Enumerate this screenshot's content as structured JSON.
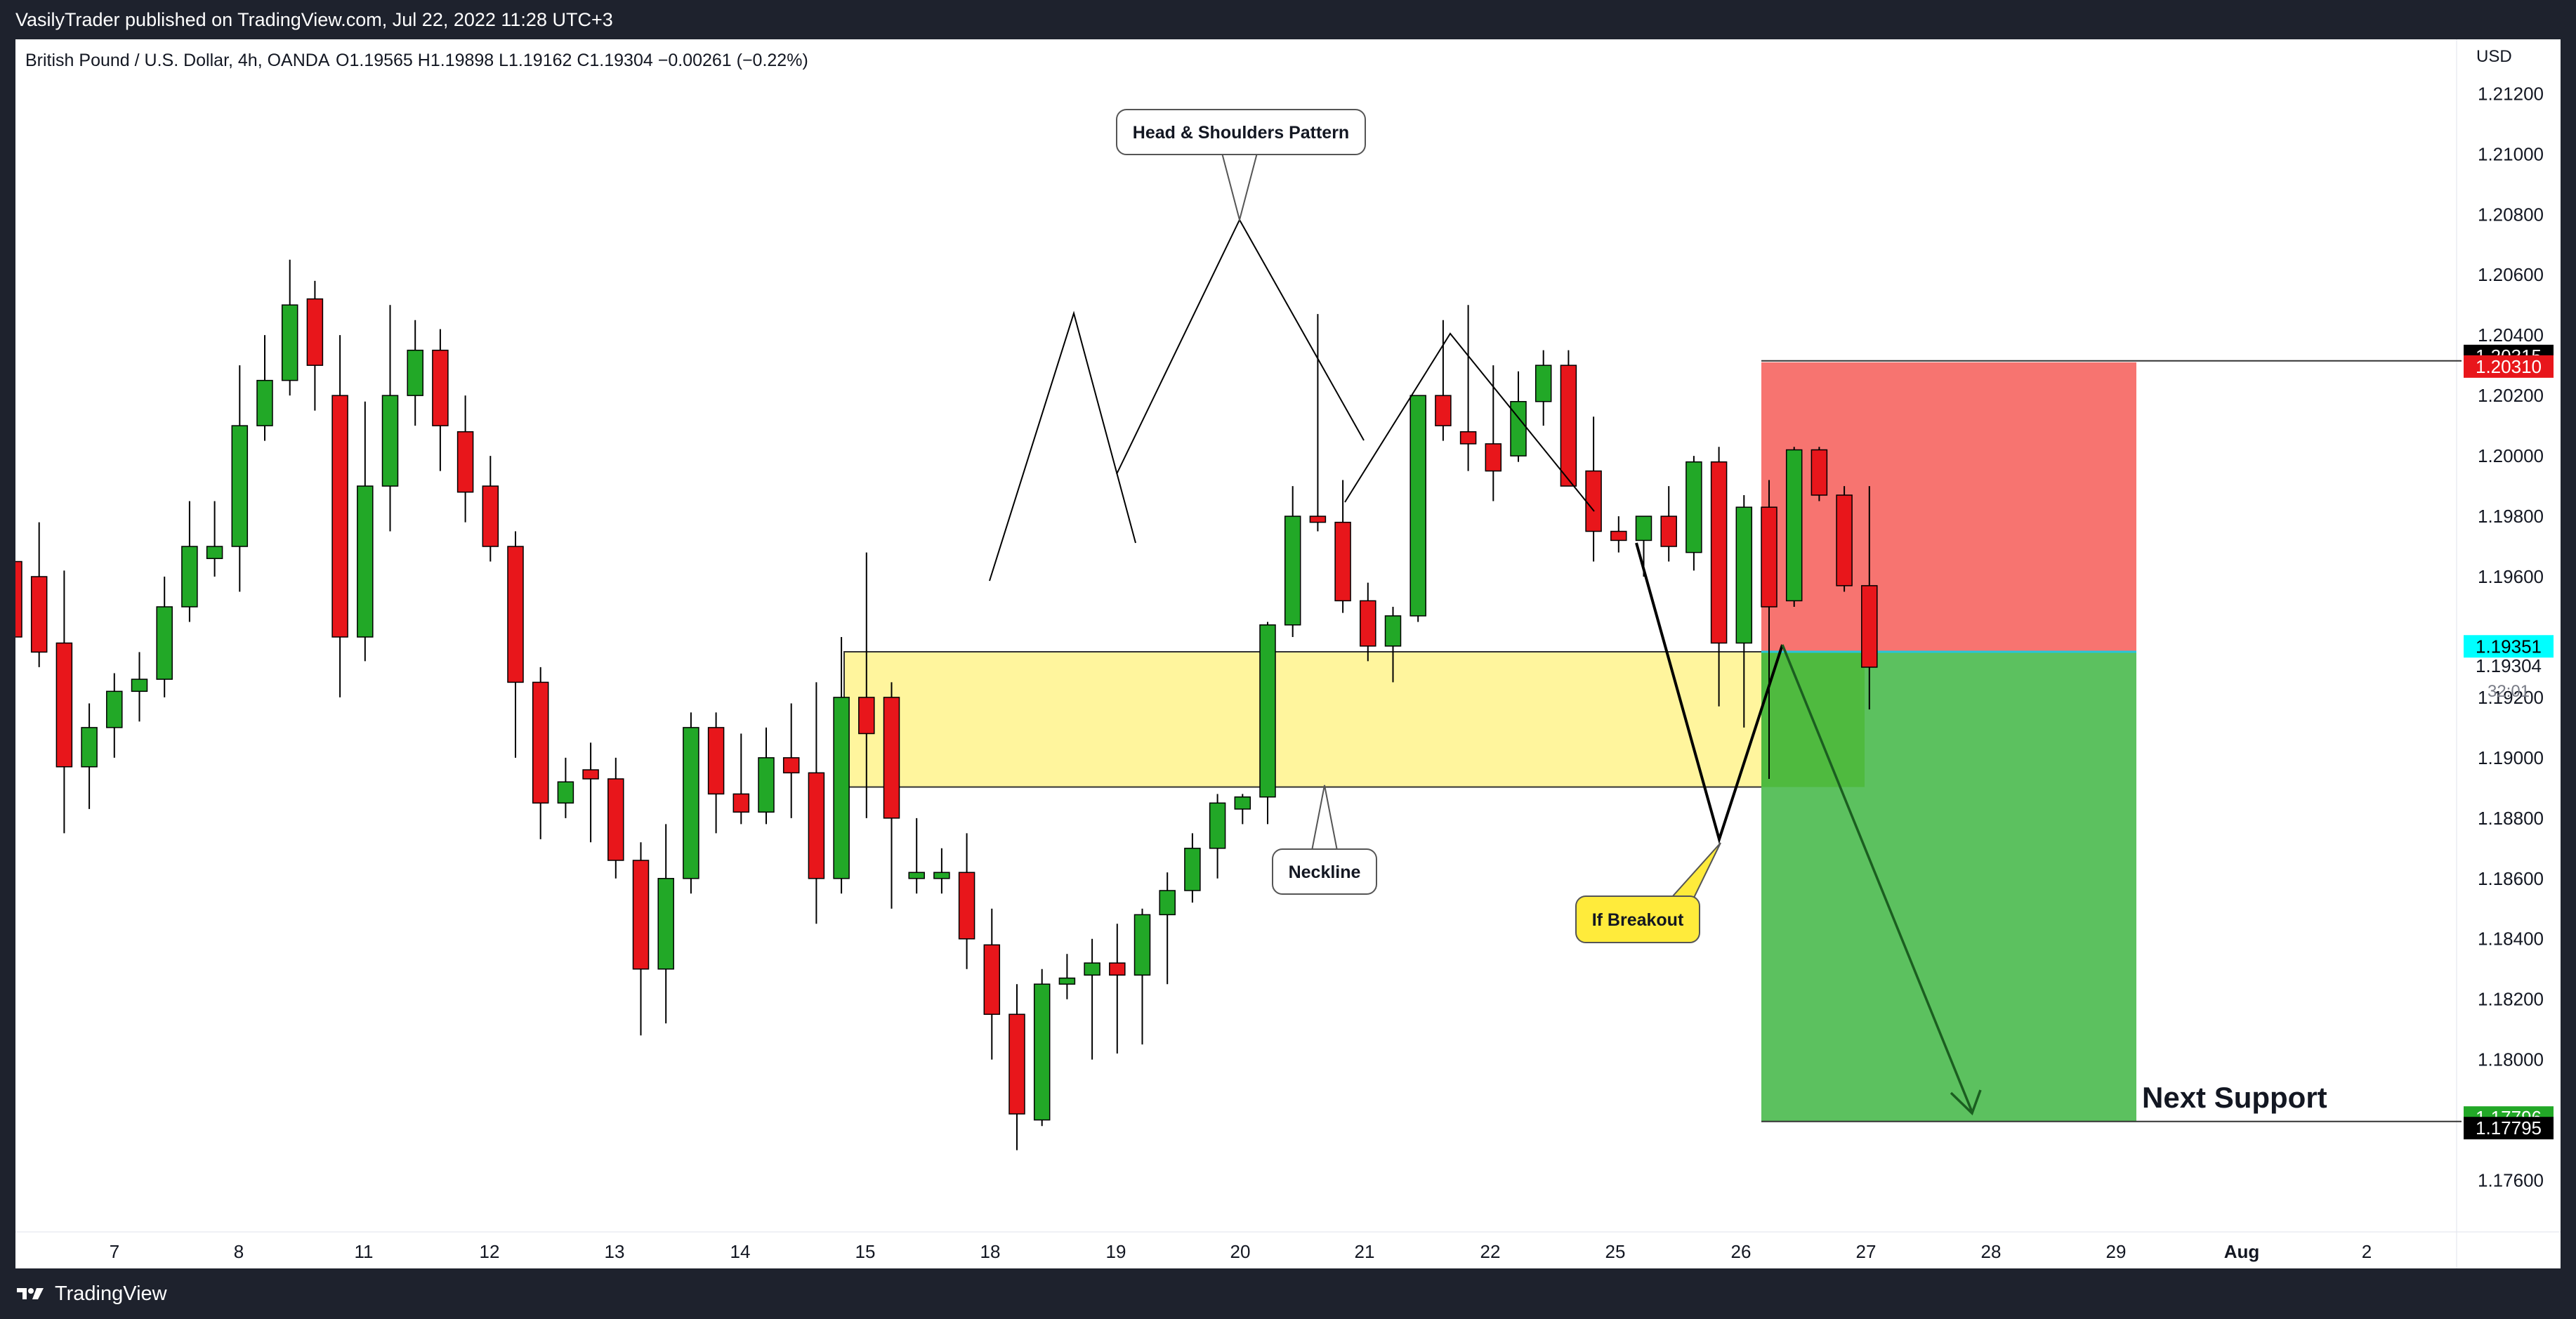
{
  "header": {
    "publisher": "VasilyTrader published on TradingView.com, Jul 22, 2022 11:28 UTC+3"
  },
  "footer": {
    "brand": "TradingView"
  },
  "colors": {
    "up": "#22a827",
    "down": "#e8161b",
    "stop_zone": "#f77470",
    "target_zone": "#5cc15f",
    "neckline_box": "#fff59d",
    "callout_yellow": "#ffeb3b",
    "last_price_tag": "#00ffff",
    "stop_tag": "#e8161b",
    "target_tag": "#22a827",
    "black_tag": "#000000"
  },
  "chart_data": {
    "type": "candlestick",
    "title": "British Pound / U.S. Dollar, 4h, OANDA",
    "ohlc_readout": "O1.19565  H1.19898  L1.19162  C1.19304  −0.00261 (−0.22%)",
    "currency_label": "USD",
    "ylim": [
      1.1735,
      1.2138
    ],
    "y_ticks": [
      "1.21200",
      "1.21000",
      "1.20800",
      "1.20600",
      "1.20400",
      "1.20200",
      "1.20000",
      "1.19800",
      "1.19600",
      "1.19400",
      "1.19200",
      "1.19000",
      "1.18800",
      "1.18600",
      "1.18400",
      "1.18200",
      "1.18000",
      "1.17800",
      "1.17600"
    ],
    "x_ticks": [
      "7",
      "8",
      "11",
      "12",
      "13",
      "14",
      "15",
      "18",
      "19",
      "20",
      "21",
      "22",
      "25",
      "26",
      "27",
      "28",
      "29",
      "Aug",
      "2"
    ],
    "candles": [
      {
        "o": 1.1965,
        "h": 1.1985,
        "l": 1.1928,
        "c": 1.194
      },
      {
        "o": 1.196,
        "h": 1.1978,
        "l": 1.193,
        "c": 1.1935
      },
      {
        "o": 1.1938,
        "h": 1.1962,
        "l": 1.1875,
        "c": 1.1897
      },
      {
        "o": 1.1897,
        "h": 1.1918,
        "l": 1.1883,
        "c": 1.191
      },
      {
        "o": 1.191,
        "h": 1.1928,
        "l": 1.19,
        "c": 1.1922
      },
      {
        "o": 1.1922,
        "h": 1.1935,
        "l": 1.1912,
        "c": 1.1926
      },
      {
        "o": 1.1926,
        "h": 1.196,
        "l": 1.192,
        "c": 1.195
      },
      {
        "o": 1.195,
        "h": 1.1985,
        "l": 1.1945,
        "c": 1.197
      },
      {
        "o": 1.1966,
        "h": 1.1985,
        "l": 1.196,
        "c": 1.197
      },
      {
        "o": 1.197,
        "h": 1.203,
        "l": 1.1955,
        "c": 1.201
      },
      {
        "o": 1.201,
        "h": 1.204,
        "l": 1.2005,
        "c": 1.2025
      },
      {
        "o": 1.2025,
        "h": 1.2065,
        "l": 1.202,
        "c": 1.205
      },
      {
        "o": 1.2052,
        "h": 1.2058,
        "l": 1.2015,
        "c": 1.203
      },
      {
        "o": 1.202,
        "h": 1.204,
        "l": 1.192,
        "c": 1.194
      },
      {
        "o": 1.194,
        "h": 1.2018,
        "l": 1.1932,
        "c": 1.199
      },
      {
        "o": 1.199,
        "h": 1.205,
        "l": 1.1975,
        "c": 1.202
      },
      {
        "o": 1.202,
        "h": 1.2045,
        "l": 1.201,
        "c": 1.2035
      },
      {
        "o": 1.2035,
        "h": 1.2042,
        "l": 1.1995,
        "c": 1.201
      },
      {
        "o": 1.2008,
        "h": 1.202,
        "l": 1.1978,
        "c": 1.1988
      },
      {
        "o": 1.199,
        "h": 1.2,
        "l": 1.1965,
        "c": 1.197
      },
      {
        "o": 1.197,
        "h": 1.1975,
        "l": 1.19,
        "c": 1.1925
      },
      {
        "o": 1.1925,
        "h": 1.193,
        "l": 1.1873,
        "c": 1.1885
      },
      {
        "o": 1.1885,
        "h": 1.19,
        "l": 1.188,
        "c": 1.1892
      },
      {
        "o": 1.1896,
        "h": 1.1905,
        "l": 1.1872,
        "c": 1.1893
      },
      {
        "o": 1.1893,
        "h": 1.19,
        "l": 1.186,
        "c": 1.1866
      },
      {
        "o": 1.1866,
        "h": 1.1872,
        "l": 1.1808,
        "c": 1.183
      },
      {
        "o": 1.183,
        "h": 1.1878,
        "l": 1.1812,
        "c": 1.186
      },
      {
        "o": 1.186,
        "h": 1.1915,
        "l": 1.1855,
        "c": 1.191
      },
      {
        "o": 1.191,
        "h": 1.1915,
        "l": 1.1875,
        "c": 1.1888
      },
      {
        "o": 1.1888,
        "h": 1.1908,
        "l": 1.1878,
        "c": 1.1882
      },
      {
        "o": 1.1882,
        "h": 1.191,
        "l": 1.1878,
        "c": 1.19
      },
      {
        "o": 1.19,
        "h": 1.1918,
        "l": 1.188,
        "c": 1.1895
      },
      {
        "o": 1.1895,
        "h": 1.1925,
        "l": 1.1845,
        "c": 1.186
      },
      {
        "o": 1.186,
        "h": 1.194,
        "l": 1.1855,
        "c": 1.192
      },
      {
        "o": 1.192,
        "h": 1.1968,
        "l": 1.188,
        "c": 1.1908
      },
      {
        "o": 1.192,
        "h": 1.1925,
        "l": 1.185,
        "c": 1.188
      },
      {
        "o": 1.186,
        "h": 1.188,
        "l": 1.1855,
        "c": 1.1862
      },
      {
        "o": 1.186,
        "h": 1.187,
        "l": 1.1855,
        "c": 1.1862
      },
      {
        "o": 1.1862,
        "h": 1.1875,
        "l": 1.183,
        "c": 1.184
      },
      {
        "o": 1.1838,
        "h": 1.185,
        "l": 1.18,
        "c": 1.1815
      },
      {
        "o": 1.1815,
        "h": 1.1825,
        "l": 1.177,
        "c": 1.1782
      },
      {
        "o": 1.178,
        "h": 1.183,
        "l": 1.1778,
        "c": 1.1825
      },
      {
        "o": 1.1825,
        "h": 1.1835,
        "l": 1.182,
        "c": 1.1827
      },
      {
        "o": 1.1828,
        "h": 1.184,
        "l": 1.18,
        "c": 1.1832
      },
      {
        "o": 1.1832,
        "h": 1.1845,
        "l": 1.1802,
        "c": 1.1828
      },
      {
        "o": 1.1828,
        "h": 1.185,
        "l": 1.1805,
        "c": 1.1848
      },
      {
        "o": 1.1848,
        "h": 1.1862,
        "l": 1.1825,
        "c": 1.1856
      },
      {
        "o": 1.1856,
        "h": 1.1875,
        "l": 1.1852,
        "c": 1.187
      },
      {
        "o": 1.187,
        "h": 1.1888,
        "l": 1.186,
        "c": 1.1885
      },
      {
        "o": 1.1883,
        "h": 1.1888,
        "l": 1.1878,
        "c": 1.1887
      },
      {
        "o": 1.1887,
        "h": 1.1945,
        "l": 1.1878,
        "c": 1.1944
      },
      {
        "o": 1.1944,
        "h": 1.199,
        "l": 1.194,
        "c": 1.198
      },
      {
        "o": 1.198,
        "h": 1.2047,
        "l": 1.1975,
        "c": 1.1978
      },
      {
        "o": 1.1978,
        "h": 1.1992,
        "l": 1.1948,
        "c": 1.1952
      },
      {
        "o": 1.1952,
        "h": 1.1958,
        "l": 1.1932,
        "c": 1.1937
      },
      {
        "o": 1.1937,
        "h": 1.195,
        "l": 1.1925,
        "c": 1.1947
      },
      {
        "o": 1.1947,
        "h": 1.202,
        "l": 1.1945,
        "c": 1.202
      },
      {
        "o": 1.202,
        "h": 1.2045,
        "l": 1.2005,
        "c": 1.201
      },
      {
        "o": 1.2008,
        "h": 1.205,
        "l": 1.1995,
        "c": 1.2004
      },
      {
        "o": 1.2004,
        "h": 1.203,
        "l": 1.1985,
        "c": 1.1995
      },
      {
        "o": 1.2,
        "h": 1.2028,
        "l": 1.1998,
        "c": 1.2018
      },
      {
        "o": 1.2018,
        "h": 1.2035,
        "l": 1.201,
        "c": 1.203
      },
      {
        "o": 1.203,
        "h": 1.2035,
        "l": 1.199,
        "c": 1.199
      },
      {
        "o": 1.1995,
        "h": 1.2013,
        "l": 1.1965,
        "c": 1.1975
      },
      {
        "o": 1.1975,
        "h": 1.198,
        "l": 1.1968,
        "c": 1.1972
      },
      {
        "o": 1.1972,
        "h": 1.1978,
        "l": 1.196,
        "c": 1.198
      },
      {
        "o": 1.198,
        "h": 1.199,
        "l": 1.1965,
        "c": 1.197
      },
      {
        "o": 1.1968,
        "h": 1.2,
        "l": 1.1962,
        "c": 1.1998
      },
      {
        "o": 1.1998,
        "h": 1.2003,
        "l": 1.1917,
        "c": 1.1938
      },
      {
        "o": 1.1938,
        "h": 1.1987,
        "l": 1.191,
        "c": 1.1983
      },
      {
        "o": 1.1983,
        "h": 1.1992,
        "l": 1.1893,
        "c": 1.195
      },
      {
        "o": 1.1952,
        "h": 1.2003,
        "l": 1.195,
        "c": 1.2002
      },
      {
        "o": 1.2002,
        "h": 1.2003,
        "l": 1.1985,
        "c": 1.1987
      },
      {
        "o": 1.1987,
        "h": 1.199,
        "l": 1.1955,
        "c": 1.1957
      },
      {
        "o": 1.1957,
        "h": 1.199,
        "l": 1.1916,
        "c": 1.193
      }
    ],
    "annotations": {
      "pattern_label": "Head & Shoulders Pattern",
      "neckline_label": "Neckline",
      "breakout_label": "If Breakout",
      "next_support_label": "Next Support",
      "neckline_zone": [
        1.18903,
        1.19351
      ],
      "stop_level": 1.2031,
      "stop_line": 1.20315,
      "entry_level": 1.19351,
      "target_level": 1.17796,
      "target_line": 1.17795,
      "last_price": 1.19304,
      "countdown": "32:01"
    },
    "price_tags": {
      "stop_line": "1.20315",
      "stop": "1.20310",
      "entry": "1.19351",
      "last": "1.19304",
      "target": "1.17796",
      "target_line": "1.17795"
    }
  }
}
